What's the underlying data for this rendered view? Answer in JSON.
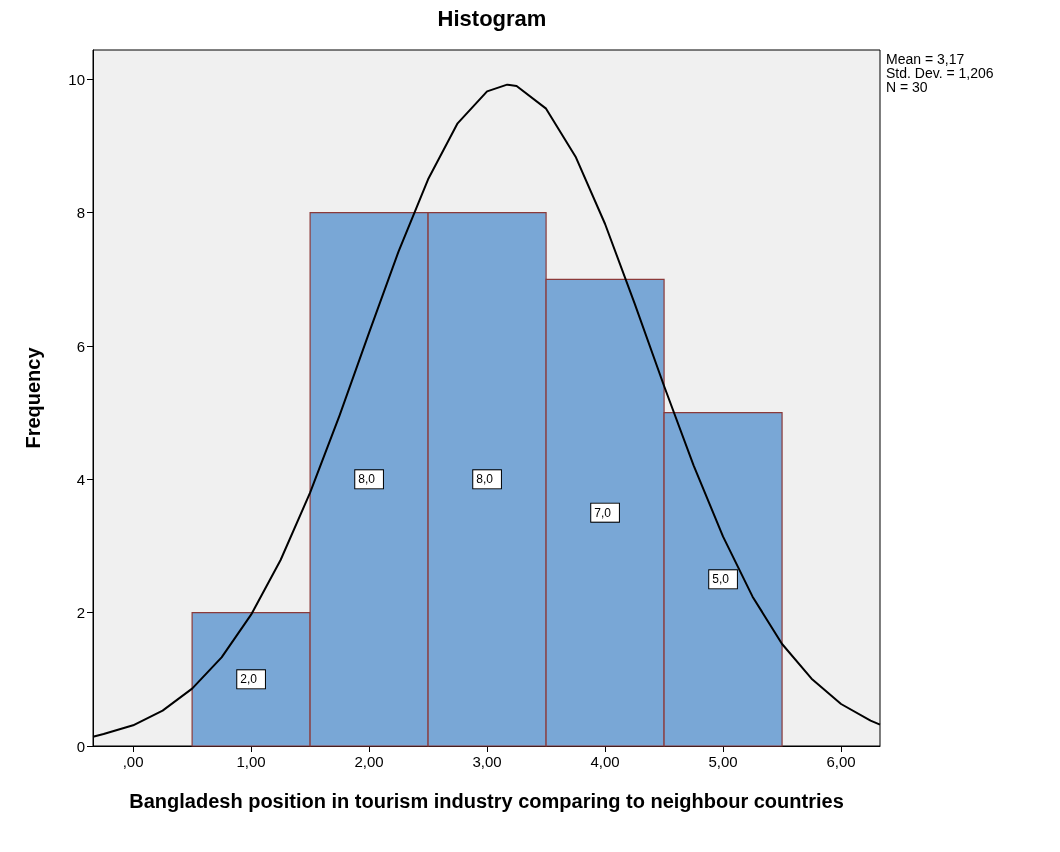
{
  "chart_data": {
    "type": "histogram",
    "title": "Histogram",
    "xlabel": "Bangladesh position in tourism industry comparing to neighbour countries",
    "ylabel": "Frequency",
    "bins": [
      0.5,
      1.5,
      2.5,
      3.5,
      4.5,
      5.5
    ],
    "values": [
      2,
      8,
      8,
      7,
      5
    ],
    "color": "#79a7d6",
    "value_labels": [
      "2,0",
      "8,0",
      "8,0",
      "7,0",
      "5,0"
    ],
    "series": [
      {
        "type": "line",
        "color": "#000000",
        "x": [
          -0.34,
          -0.25,
          0,
          0.25,
          0.5,
          0.75,
          1,
          1.25,
          1.5,
          1.75,
          2,
          2.25,
          2.5,
          2.75,
          3,
          3.17,
          3.25,
          3.5,
          3.75,
          4,
          4.25,
          4.5,
          4.75,
          5,
          5.25,
          5.5,
          5.75,
          6,
          6.25,
          6.33
        ],
        "values": [
          0.14,
          0.18,
          0.31,
          0.53,
          0.86,
          1.33,
          1.97,
          2.79,
          3.8,
          4.96,
          6.2,
          7.42,
          8.5,
          9.34,
          9.82,
          9.92,
          9.9,
          9.56,
          8.84,
          7.83,
          6.64,
          5.4,
          4.21,
          3.14,
          2.24,
          1.53,
          1.01,
          0.63,
          0.38,
          0.32
        ]
      }
    ],
    "xlim": [
      -0.34,
      6.33
    ],
    "xticks": [
      {
        "value": 0,
        "label": ",00"
      },
      {
        "value": 1,
        "label": "1,00"
      },
      {
        "value": 2,
        "label": "2,00"
      },
      {
        "value": 3,
        "label": "3,00"
      },
      {
        "value": 4,
        "label": "4,00"
      },
      {
        "value": 5,
        "label": "5,00"
      },
      {
        "value": 6,
        "label": "6,00"
      }
    ],
    "ylim": [
      0,
      10.44
    ],
    "yticks": [
      0,
      2,
      4,
      6,
      8,
      10
    ],
    "annotations": [
      "Mean = 3,17",
      "Std. Dev. = 1,206",
      "N = 30"
    ]
  }
}
